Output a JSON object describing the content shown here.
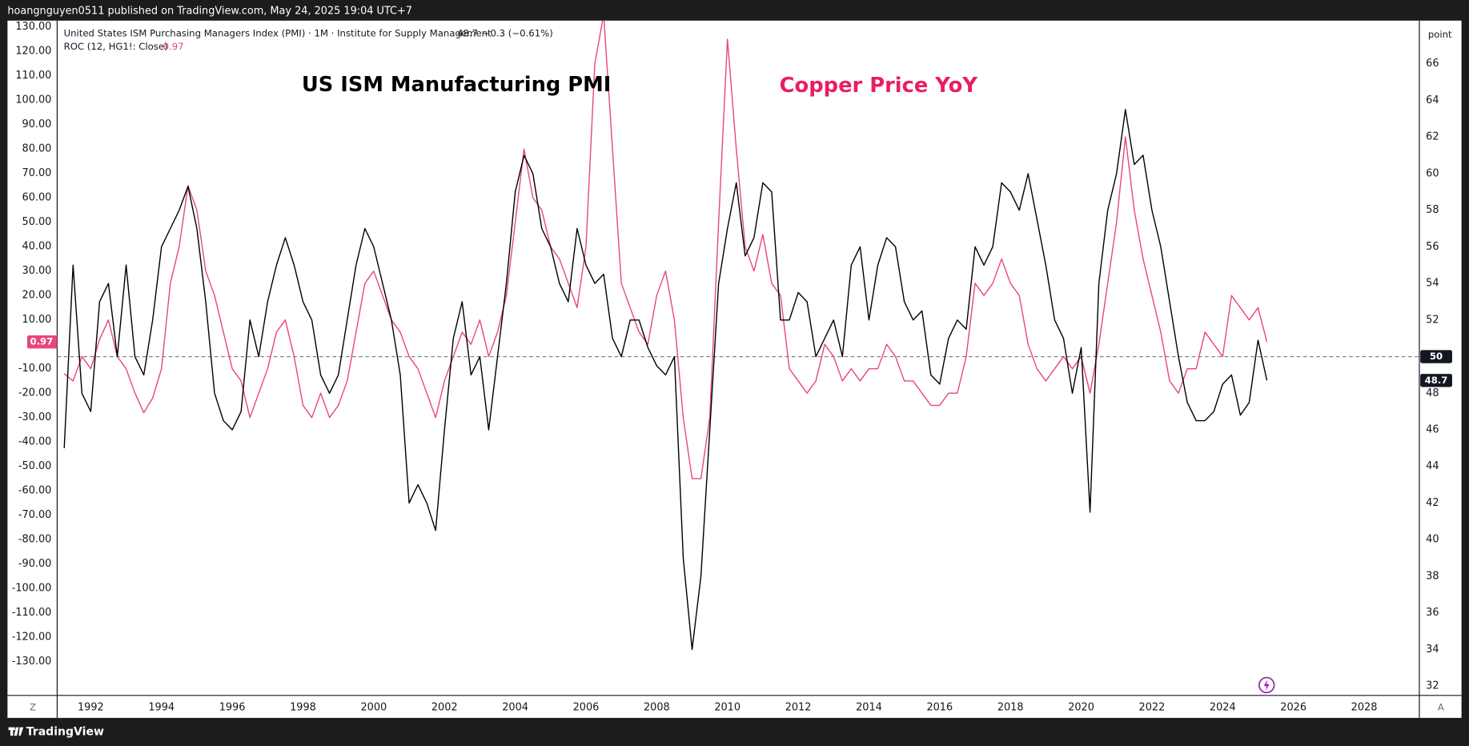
{
  "header": {
    "text": "hoangnguyen0511 published on TradingView.com, May 24, 2025 19:04 UTC+7"
  },
  "footer": {
    "brand": "TradingView",
    "left_button": "Z",
    "right_button": "A"
  },
  "chart_data": {
    "type": "line",
    "annotations": [
      {
        "text": "US ISM Manufacturing PMI",
        "color": "#000000"
      },
      {
        "text": "Copper Price YoY",
        "color": "#e91e63"
      }
    ],
    "y2label": "point",
    "x": [
      1991.25,
      1991.5,
      1991.75,
      1992.0,
      1992.25,
      1992.5,
      1992.75,
      1993.0,
      1993.25,
      1993.5,
      1993.75,
      1994.0,
      1994.25,
      1994.5,
      1994.75,
      1995.0,
      1995.25,
      1995.5,
      1995.75,
      1996.0,
      1996.25,
      1996.5,
      1996.75,
      1997.0,
      1997.25,
      1997.5,
      1997.75,
      1998.0,
      1998.25,
      1998.5,
      1998.75,
      1999.0,
      1999.25,
      1999.5,
      1999.75,
      2000.0,
      2000.25,
      2000.5,
      2000.75,
      2001.0,
      2001.25,
      2001.5,
      2001.75,
      2002.0,
      2002.25,
      2002.5,
      2002.75,
      2003.0,
      2003.25,
      2003.5,
      2003.75,
      2004.0,
      2004.25,
      2004.5,
      2004.75,
      2005.0,
      2005.25,
      2005.5,
      2005.75,
      2006.0,
      2006.25,
      2006.5,
      2006.75,
      2007.0,
      2007.25,
      2007.5,
      2007.75,
      2008.0,
      2008.25,
      2008.5,
      2008.75,
      2009.0,
      2009.25,
      2009.5,
      2009.75,
      2010.0,
      2010.25,
      2010.5,
      2010.75,
      2011.0,
      2011.25,
      2011.5,
      2011.75,
      2012.0,
      2012.25,
      2012.5,
      2012.75,
      2013.0,
      2013.25,
      2013.5,
      2013.75,
      2014.0,
      2014.25,
      2014.5,
      2014.75,
      2015.0,
      2015.25,
      2015.5,
      2015.75,
      2016.0,
      2016.25,
      2016.5,
      2016.75,
      2017.0,
      2017.25,
      2017.5,
      2017.75,
      2018.0,
      2018.25,
      2018.5,
      2018.75,
      2019.0,
      2019.25,
      2019.5,
      2019.75,
      2020.0,
      2020.25,
      2020.5,
      2020.75,
      2021.0,
      2021.25,
      2021.5,
      2021.75,
      2022.0,
      2022.25,
      2022.5,
      2022.75,
      2023.0,
      2023.25,
      2023.5,
      2023.75,
      2024.0,
      2024.25,
      2024.5,
      2024.75,
      2025.0,
      2025.25
    ],
    "series": [
      {
        "name": "United States ISM Purchasing Managers Index (PMI) · 1M · Institute for Supply Management",
        "legend_value": "48.7",
        "legend_change": "−0.3 (−0.61%)",
        "color": "#000000",
        "axis": "y2",
        "values": [
          45,
          55,
          48,
          47,
          53,
          54,
          50,
          55,
          50,
          49,
          52,
          56,
          57,
          58,
          59.3,
          57,
          53,
          48,
          46.5,
          46,
          47,
          52,
          50,
          53,
          55,
          56.5,
          55,
          53,
          52,
          49,
          48,
          49,
          52,
          55,
          57,
          56,
          54,
          52,
          49,
          42,
          43,
          42,
          40.5,
          46,
          51,
          53,
          49,
          50,
          46,
          50,
          54,
          59,
          61,
          60,
          57,
          56,
          54,
          53,
          57,
          55,
          54,
          54.5,
          51,
          50,
          52,
          52,
          50.5,
          49.5,
          49,
          50,
          39,
          34,
          38,
          46,
          54,
          57,
          59.5,
          55.5,
          56.5,
          59.5,
          59,
          52,
          52,
          53.5,
          53,
          50,
          51,
          52,
          50,
          55,
          56,
          52,
          55,
          56.5,
          56,
          53,
          52,
          52.5,
          49,
          48.5,
          51,
          52,
          51.5,
          56,
          55,
          56,
          59.5,
          59,
          58,
          60,
          57.5,
          55,
          52,
          51,
          48,
          50.5,
          41.5,
          54,
          58,
          60,
          63.5,
          60.5,
          61,
          58,
          56,
          53,
          50,
          47.5,
          46.5,
          46.5,
          47,
          48.5,
          49,
          46.8,
          47.5,
          50.9,
          48.7
        ]
      },
      {
        "name": "ROC (12, HG1!: Close)",
        "color": "#e8467c",
        "axis": "y",
        "values": [
          -12,
          -15,
          -5,
          -10,
          2,
          10,
          -5,
          -10,
          -20,
          -28,
          -22,
          -10,
          25,
          40,
          65,
          55,
          30,
          20,
          5,
          -10,
          -15,
          -30,
          -20,
          -10,
          5,
          10,
          -5,
          -25,
          -30,
          -20,
          -30,
          -25,
          -15,
          5,
          25,
          30,
          20,
          10,
          5,
          -5,
          -10,
          -20,
          -30,
          -15,
          -5,
          5,
          0,
          10,
          -5,
          5,
          20,
          50,
          80,
          60,
          55,
          40,
          35,
          25,
          15,
          40,
          115,
          135,
          80,
          25,
          15,
          5,
          0,
          20,
          30,
          10,
          -30,
          -55,
          -55,
          -30,
          50,
          125,
          80,
          40,
          30,
          45,
          25,
          20,
          -10,
          -15,
          -20,
          -15,
          0,
          -5,
          -15,
          -10,
          -15,
          -10,
          -10,
          0,
          -5,
          -15,
          -15,
          -20,
          -25,
          -25,
          -20,
          -20,
          -5,
          25,
          20,
          25,
          35,
          25,
          20,
          0,
          -10,
          -15,
          -10,
          -5,
          -10,
          -5,
          -20,
          0,
          25,
          50,
          85,
          55,
          35,
          20,
          5,
          -15,
          -20,
          -10,
          -10,
          5,
          0,
          -5,
          20,
          15,
          10,
          15,
          0.97
        ]
      }
    ],
    "hline": {
      "value": 50,
      "axis": "y2"
    },
    "xlim": [
      1991.05,
      2029.56
    ],
    "xticks": [
      1992,
      1994,
      1996,
      1998,
      2000,
      2002,
      2004,
      2006,
      2008,
      2010,
      2012,
      2014,
      2016,
      2018,
      2020,
      2022,
      2024,
      2026,
      2028
    ],
    "ylim": [
      -143.8,
      132.6
    ],
    "yticks": [
      {
        "value": 130,
        "label": "130.00"
      },
      {
        "value": 120,
        "label": "120.00"
      },
      {
        "value": 110,
        "label": "110.00"
      },
      {
        "value": 100,
        "label": "100.00"
      },
      {
        "value": 90,
        "label": "90.00"
      },
      {
        "value": 80,
        "label": "80.00"
      },
      {
        "value": 70,
        "label": "70.00"
      },
      {
        "value": 60,
        "label": "60.00"
      },
      {
        "value": 50,
        "label": "50.00"
      },
      {
        "value": 40,
        "label": "40.00"
      },
      {
        "value": 30,
        "label": "30.00"
      },
      {
        "value": 20,
        "label": "20.00"
      },
      {
        "value": 10,
        "label": "10.00"
      },
      {
        "value": 0,
        "label": "0.00"
      },
      {
        "value": -10,
        "label": "-10.00"
      },
      {
        "value": -20,
        "label": "-20.00"
      },
      {
        "value": -30,
        "label": "-30.00"
      },
      {
        "value": -40,
        "label": "-40.00"
      },
      {
        "value": -50,
        "label": "-50.00"
      },
      {
        "value": -60,
        "label": "-60.00"
      },
      {
        "value": -70,
        "label": "-70.00"
      },
      {
        "value": -80,
        "label": "-80.00"
      },
      {
        "value": -90,
        "label": "-90.00"
      },
      {
        "value": -100,
        "label": "-100.00"
      },
      {
        "value": -110,
        "label": "-110.00"
      },
      {
        "value": -120,
        "label": "-120.00"
      },
      {
        "value": -130,
        "label": "-130.00"
      }
    ],
    "y2lim": [
      31.49,
      68.36
    ],
    "y2ticks": [
      66,
      64,
      62,
      60,
      58,
      56,
      54,
      52,
      50,
      48,
      46,
      44,
      42,
      40,
      38,
      36,
      34,
      32
    ],
    "grid": false
  }
}
